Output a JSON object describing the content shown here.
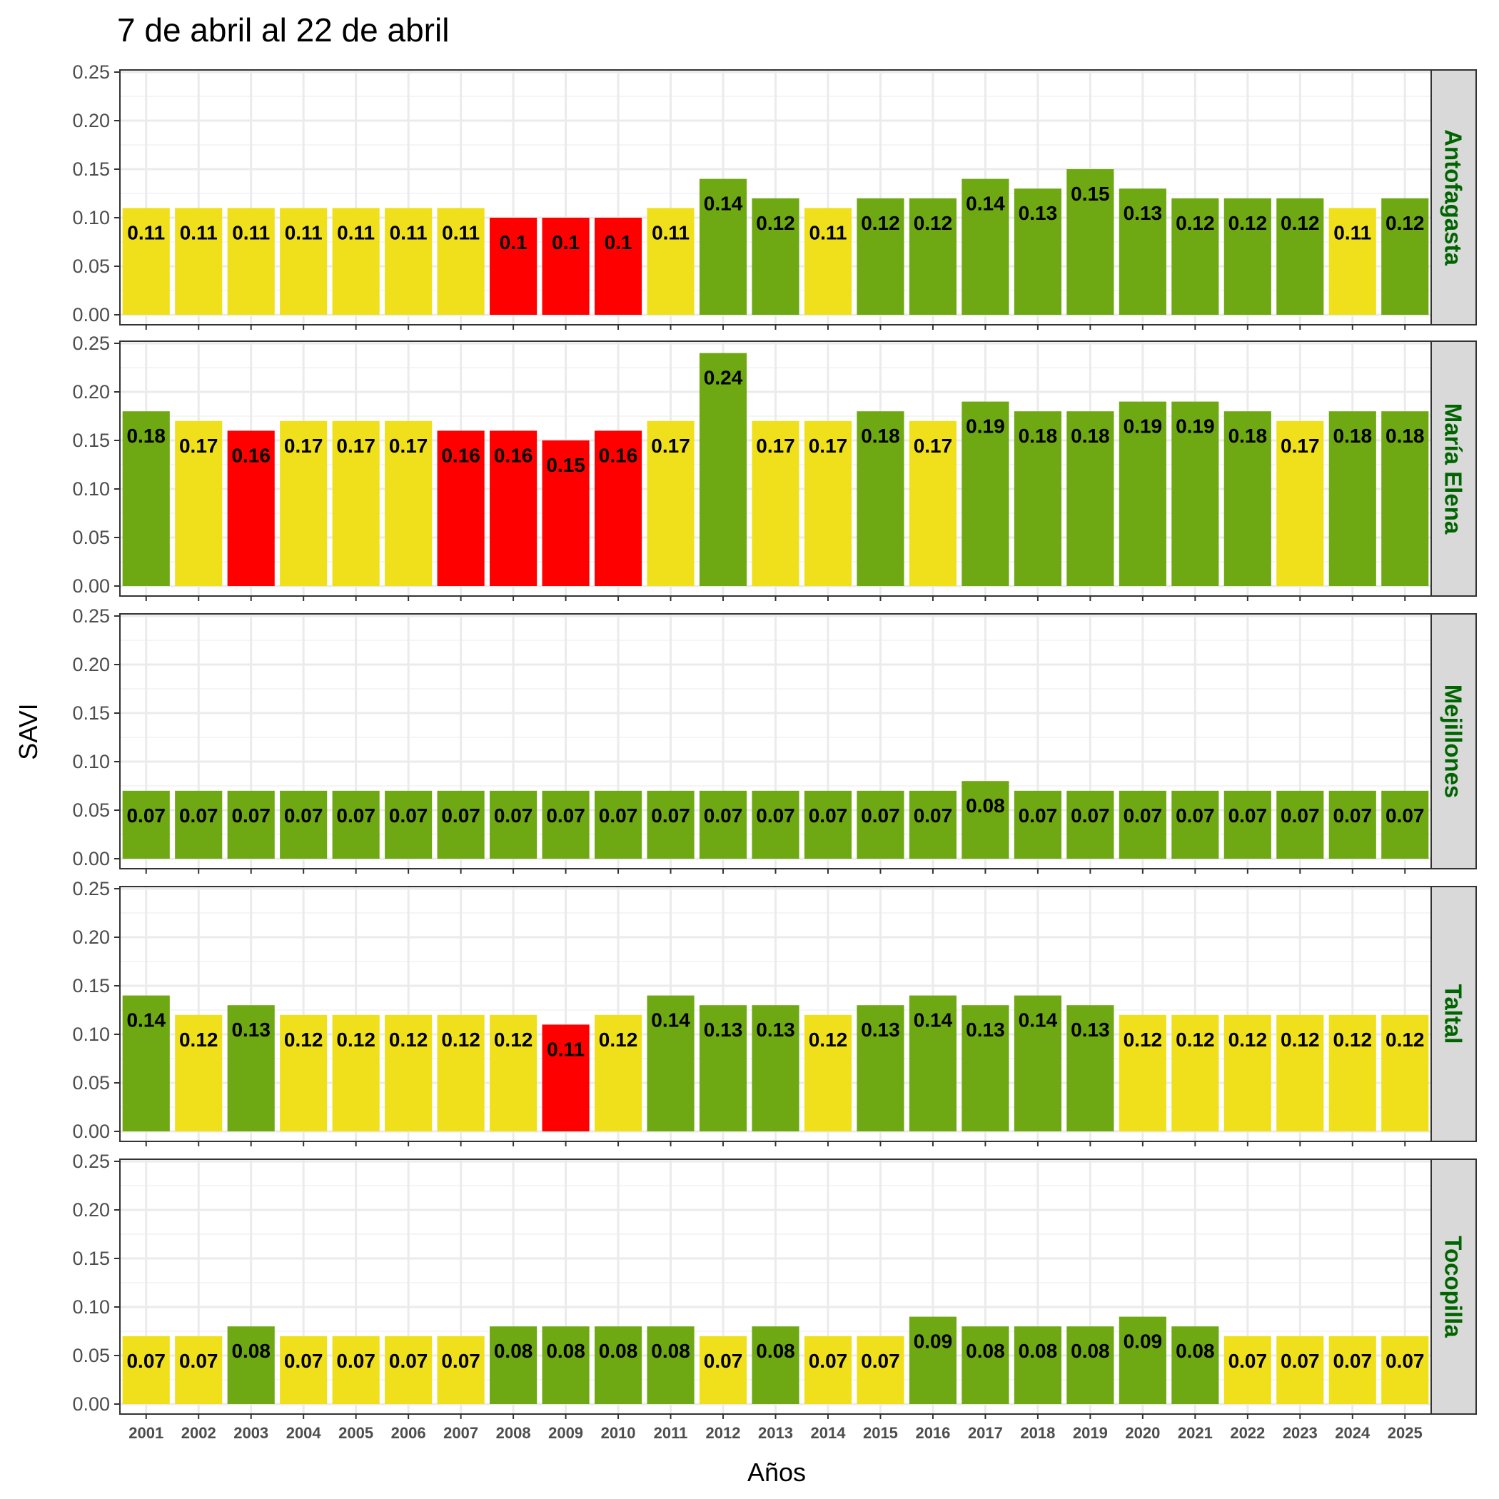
{
  "chart_data": {
    "type": "bar",
    "title": "7 de abril al 22 de abril",
    "xlabel": "Años",
    "ylabel": "SAVI",
    "ylim": [
      0,
      0.25
    ],
    "yticks": [
      "0.00",
      "0.05",
      "0.10",
      "0.15",
      "0.20",
      "0.25"
    ],
    "grid": true,
    "facet_layout": "stacked vertically, facet labels on right",
    "categories": [
      "2001",
      "2002",
      "2003",
      "2004",
      "2005",
      "2006",
      "2007",
      "2008",
      "2009",
      "2010",
      "2011",
      "2012",
      "2013",
      "2014",
      "2015",
      "2016",
      "2017",
      "2018",
      "2019",
      "2020",
      "2021",
      "2022",
      "2023",
      "2024",
      "2025"
    ],
    "colors": {
      "red": "#ff0000",
      "yellow": "#f0e01c",
      "green": "#6ea812",
      "strip_text": "#006400",
      "strip_bg": "#d9d9d9"
    },
    "facets": [
      {
        "name": "Antofagasta",
        "values": [
          0.11,
          0.11,
          0.11,
          0.11,
          0.11,
          0.11,
          0.11,
          0.1,
          0.1,
          0.1,
          0.11,
          0.14,
          0.12,
          0.11,
          0.12,
          0.12,
          0.14,
          0.13,
          0.15,
          0.13,
          0.12,
          0.12,
          0.12,
          0.11,
          0.12
        ],
        "labels": [
          "0.11",
          "0.11",
          "0.11",
          "0.11",
          "0.11",
          "0.11",
          "0.11",
          "0.1",
          "0.1",
          "0.1",
          "0.11",
          "0.14",
          "0.12",
          "0.11",
          "0.12",
          "0.12",
          "0.14",
          "0.13",
          "0.15",
          "0.13",
          "0.12",
          "0.12",
          "0.12",
          "0.11",
          "0.12"
        ],
        "bar_colors": [
          "yellow",
          "yellow",
          "yellow",
          "yellow",
          "yellow",
          "yellow",
          "yellow",
          "red",
          "red",
          "red",
          "yellow",
          "green",
          "green",
          "yellow",
          "green",
          "green",
          "green",
          "green",
          "green",
          "green",
          "green",
          "green",
          "green",
          "yellow",
          "green"
        ]
      },
      {
        "name": "María Elena",
        "values": [
          0.18,
          0.17,
          0.16,
          0.17,
          0.17,
          0.17,
          0.16,
          0.16,
          0.15,
          0.16,
          0.17,
          0.24,
          0.17,
          0.17,
          0.18,
          0.17,
          0.19,
          0.18,
          0.18,
          0.19,
          0.19,
          0.18,
          0.17,
          0.18,
          0.18
        ],
        "labels": [
          "0.18",
          "0.17",
          "0.16",
          "0.17",
          "0.17",
          "0.17",
          "0.16",
          "0.16",
          "0.15",
          "0.16",
          "0.17",
          "0.24",
          "0.17",
          "0.17",
          "0.18",
          "0.17",
          "0.19",
          "0.18",
          "0.18",
          "0.19",
          "0.19",
          "0.18",
          "0.17",
          "0.18",
          "0.18"
        ],
        "bar_colors": [
          "green",
          "yellow",
          "red",
          "yellow",
          "yellow",
          "yellow",
          "red",
          "red",
          "red",
          "red",
          "yellow",
          "green",
          "yellow",
          "yellow",
          "green",
          "yellow",
          "green",
          "green",
          "green",
          "green",
          "green",
          "green",
          "yellow",
          "green",
          "green"
        ]
      },
      {
        "name": "Mejillones",
        "values": [
          0.07,
          0.07,
          0.07,
          0.07,
          0.07,
          0.07,
          0.07,
          0.07,
          0.07,
          0.07,
          0.07,
          0.07,
          0.07,
          0.07,
          0.07,
          0.07,
          0.08,
          0.07,
          0.07,
          0.07,
          0.07,
          0.07,
          0.07,
          0.07,
          0.07
        ],
        "labels": [
          "0.07",
          "0.07",
          "0.07",
          "0.07",
          "0.07",
          "0.07",
          "0.07",
          "0.07",
          "0.07",
          "0.07",
          "0.07",
          "0.07",
          "0.07",
          "0.07",
          "0.07",
          "0.07",
          "0.08",
          "0.07",
          "0.07",
          "0.07",
          "0.07",
          "0.07",
          "0.07",
          "0.07",
          "0.07"
        ],
        "bar_colors": [
          "green",
          "green",
          "green",
          "green",
          "green",
          "green",
          "green",
          "green",
          "green",
          "green",
          "green",
          "green",
          "green",
          "green",
          "green",
          "green",
          "green",
          "green",
          "green",
          "green",
          "green",
          "green",
          "green",
          "green",
          "green"
        ]
      },
      {
        "name": "Taltal",
        "values": [
          0.14,
          0.12,
          0.13,
          0.12,
          0.12,
          0.12,
          0.12,
          0.12,
          0.11,
          0.12,
          0.14,
          0.13,
          0.13,
          0.12,
          0.13,
          0.14,
          0.13,
          0.14,
          0.13,
          0.12,
          0.12,
          0.12,
          0.12,
          0.12,
          0.12
        ],
        "labels": [
          "0.14",
          "0.12",
          "0.13",
          "0.12",
          "0.12",
          "0.12",
          "0.12",
          "0.12",
          "0.11",
          "0.12",
          "0.14",
          "0.13",
          "0.13",
          "0.12",
          "0.13",
          "0.14",
          "0.13",
          "0.14",
          "0.13",
          "0.12",
          "0.12",
          "0.12",
          "0.12",
          "0.12",
          "0.12"
        ],
        "bar_colors": [
          "green",
          "yellow",
          "green",
          "yellow",
          "yellow",
          "yellow",
          "yellow",
          "yellow",
          "red",
          "yellow",
          "green",
          "green",
          "green",
          "yellow",
          "green",
          "green",
          "green",
          "green",
          "green",
          "yellow",
          "yellow",
          "yellow",
          "yellow",
          "yellow",
          "yellow"
        ]
      },
      {
        "name": "Tocopilla",
        "values": [
          0.07,
          0.07,
          0.08,
          0.07,
          0.07,
          0.07,
          0.07,
          0.08,
          0.08,
          0.08,
          0.08,
          0.07,
          0.08,
          0.07,
          0.07,
          0.09,
          0.08,
          0.08,
          0.08,
          0.09,
          0.08,
          0.07,
          0.07,
          0.07,
          0.07
        ],
        "labels": [
          "0.07",
          "0.07",
          "0.08",
          "0.07",
          "0.07",
          "0.07",
          "0.07",
          "0.08",
          "0.08",
          "0.08",
          "0.08",
          "0.07",
          "0.08",
          "0.07",
          "0.07",
          "0.09",
          "0.08",
          "0.08",
          "0.08",
          "0.09",
          "0.08",
          "0.07",
          "0.07",
          "0.07",
          "0.07"
        ],
        "bar_colors": [
          "yellow",
          "yellow",
          "green",
          "yellow",
          "yellow",
          "yellow",
          "yellow",
          "green",
          "green",
          "green",
          "green",
          "yellow",
          "green",
          "yellow",
          "yellow",
          "green",
          "green",
          "green",
          "green",
          "green",
          "green",
          "yellow",
          "yellow",
          "yellow",
          "yellow"
        ]
      }
    ]
  }
}
